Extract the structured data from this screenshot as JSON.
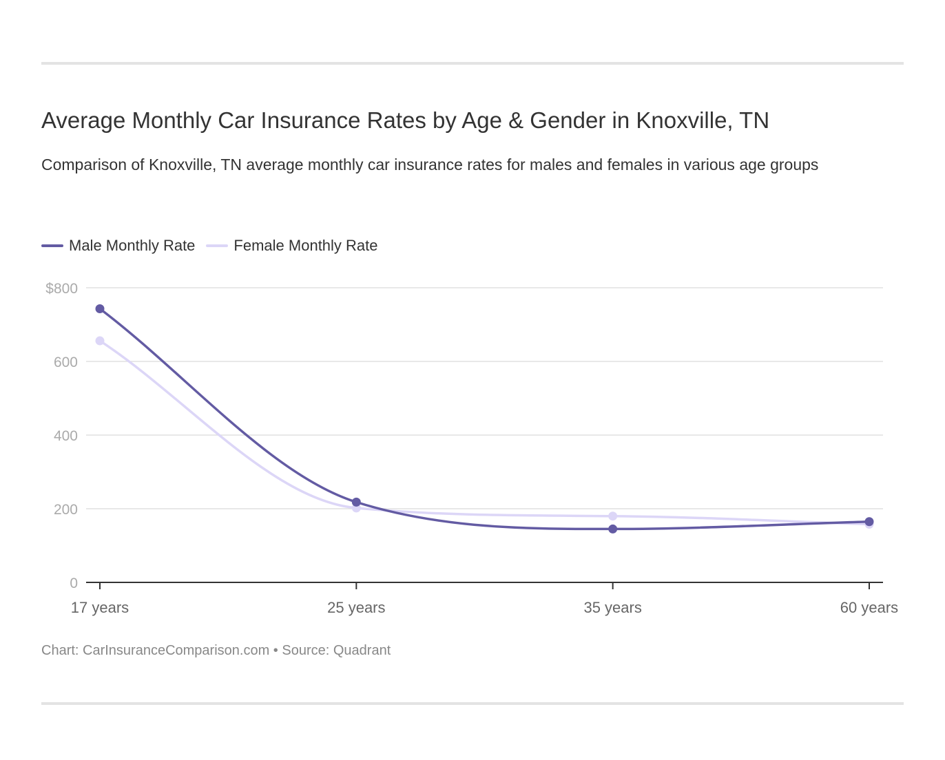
{
  "title": "Average Monthly Car Insurance Rates by Age & Gender in Knoxville, TN",
  "subtitle": "Comparison of Knoxville, TN average monthly car insurance rates for males and females in various age groups",
  "footer": {
    "chart_credit": "Chart: CarInsuranceComparison.com",
    "separator": " • ",
    "source": "Source: Quadrant"
  },
  "colors": {
    "male": "#635ba3",
    "female": "#dcd6f7",
    "grid": "#e0e0e0",
    "axis": "#333333",
    "tick_text": "#aaaaaa",
    "category_text": "#666666"
  },
  "chart_data": {
    "type": "line",
    "title": "Average Monthly Car Insurance Rates by Age & Gender in Knoxville, TN",
    "categories": [
      "17 years",
      "25 years",
      "35 years",
      "60 years"
    ],
    "series": [
      {
        "name": "Male Monthly Rate",
        "values": [
          743,
          218,
          145,
          165
        ],
        "color": "#635ba3"
      },
      {
        "name": "Female Monthly Rate",
        "values": [
          656,
          202,
          180,
          158
        ],
        "color": "#dcd6f7"
      }
    ],
    "y_ticks": [
      0,
      200,
      400,
      600,
      800
    ],
    "y_tick_labels": [
      "0",
      "200",
      "400",
      "600",
      "$800"
    ],
    "ylim": [
      0,
      800
    ],
    "xlabel": "",
    "ylabel": "",
    "grid": true,
    "legend_position": "top-left",
    "smooth": true
  }
}
